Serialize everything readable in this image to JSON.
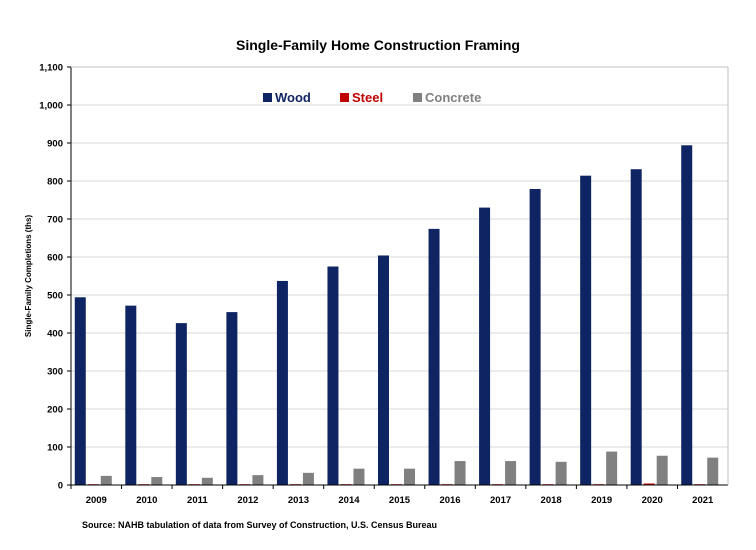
{
  "title": "Single-Family Home Construction  Framing",
  "source": "Source: NAHB tabulation of data from Survey of Construction, U.S. Census Bureau",
  "chart_data": {
    "type": "bar",
    "title": "Single-Family Home Construction  Framing",
    "xlabel": "",
    "ylabel": "Single-Family Completions (ths)",
    "ylim": [
      0,
      1100
    ],
    "yticks": [
      0,
      100,
      200,
      300,
      400,
      500,
      600,
      700,
      800,
      900,
      1000,
      1100
    ],
    "ytick_labels": [
      "0",
      "100",
      "200",
      "300",
      "400",
      "500",
      "600",
      "700",
      "800",
      "900",
      "1,000",
      "1,100"
    ],
    "grid": true,
    "legend_position": "top-center",
    "categories": [
      "2009",
      "2010",
      "2011",
      "2012",
      "2013",
      "2014",
      "2015",
      "2016",
      "2017",
      "2018",
      "2019",
      "2020",
      "2021"
    ],
    "series": [
      {
        "name": "Wood",
        "color": "#0f2462",
        "values": [
          494,
          472,
          426,
          455,
          537,
          575,
          604,
          674,
          730,
          779,
          814,
          831,
          894
        ]
      },
      {
        "name": "Steel",
        "color": "#c00000",
        "values": [
          2,
          1,
          1,
          1,
          2,
          2,
          2,
          2,
          2,
          2,
          2,
          4,
          2
        ]
      },
      {
        "name": "Concrete",
        "color": "#808080",
        "values": [
          24,
          21,
          19,
          26,
          32,
          43,
          43,
          63,
          63,
          61,
          88,
          77,
          72
        ]
      }
    ]
  }
}
